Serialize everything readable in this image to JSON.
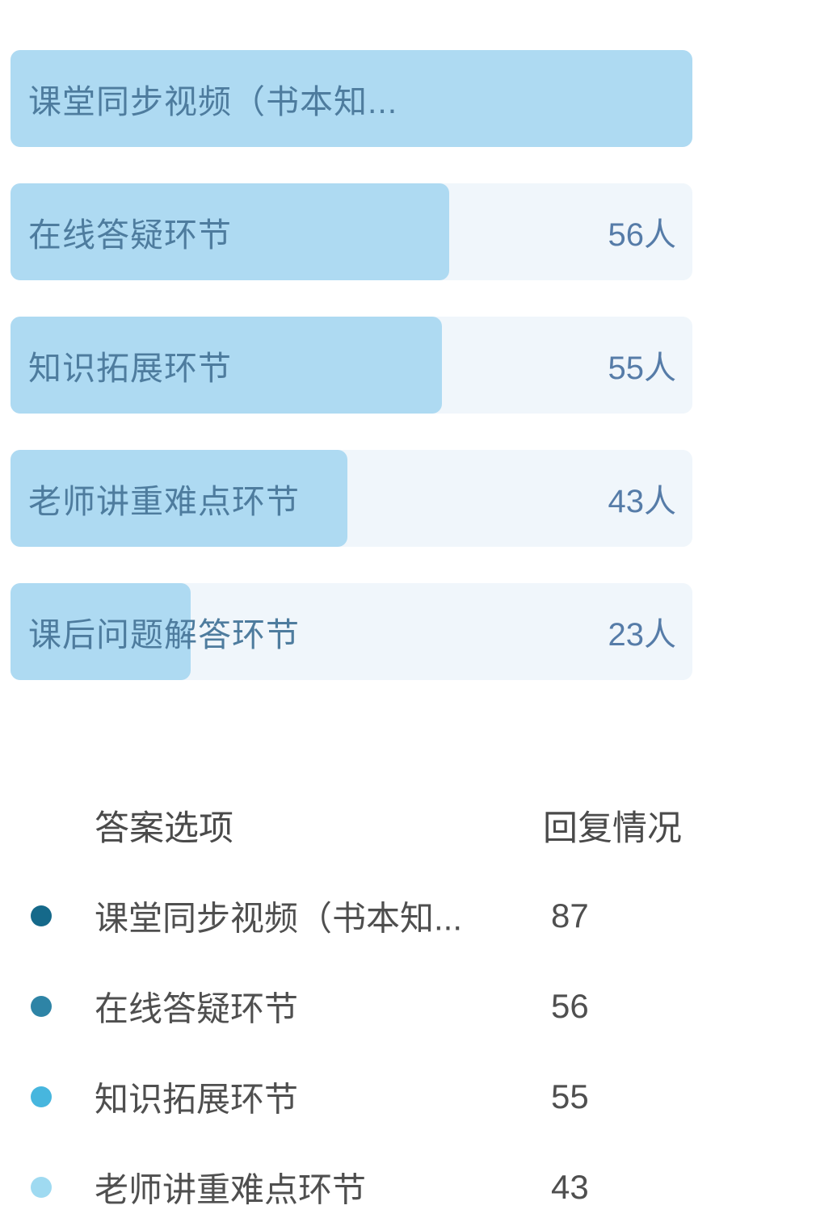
{
  "chart_data": {
    "type": "bar",
    "orientation": "horizontal",
    "title": "",
    "categories": [
      "课堂同步视频（书本知...",
      "在线答疑环节",
      "知识拓展环节",
      "老师讲重难点环节",
      "课后问题解答环节"
    ],
    "values": [
      87,
      56,
      55,
      43,
      23
    ],
    "value_labels": [
      "",
      "56人",
      "55人",
      "43人",
      "23人"
    ],
    "max_value": 87,
    "grid": false,
    "legend_position": "none",
    "colors": {
      "bar_fill": "#AEDAF2",
      "bar_track": "#F0F6FB",
      "bar_label_text": "#4E7C9E",
      "bar_count_text": "#567CA8"
    }
  },
  "table": {
    "headers": [
      "答案选项",
      "回复情况"
    ],
    "rows": [
      {
        "dot_color": "#15698A",
        "option": "课堂同步视频（书本知...",
        "count": "87"
      },
      {
        "dot_color": "#2E84A6",
        "option": "在线答疑环节",
        "count": "56"
      },
      {
        "dot_color": "#47B6DE",
        "option": "知识拓展环节",
        "count": "55"
      },
      {
        "dot_color": "#9FDAF1",
        "option": "老师讲重难点环节",
        "count": "43"
      }
    ]
  }
}
